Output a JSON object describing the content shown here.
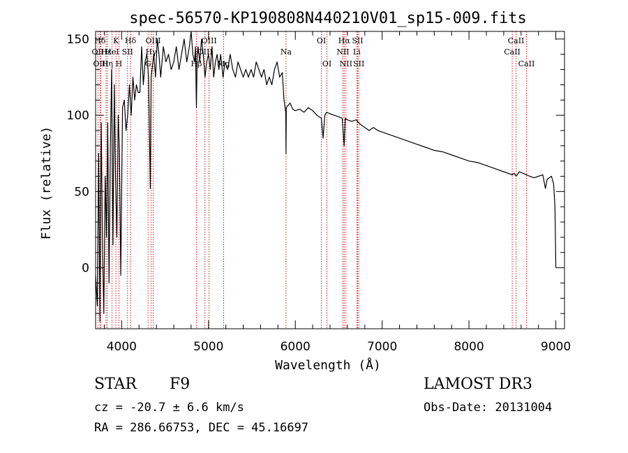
{
  "chart_data": {
    "type": "line",
    "title": "spec-56570-KP190808N440210V01_sp15-009.fits",
    "xlabel": "Wavelength (Å)",
    "ylabel": "Flux (relative)",
    "xlim": [
      3700,
      9100
    ],
    "ylim": [
      -40,
      155
    ],
    "xticks": [
      4000,
      5000,
      6000,
      7000,
      8000,
      9000
    ],
    "yticks": [
      0,
      50,
      100,
      150
    ],
    "xtick_labels": [
      "4000",
      "5000",
      "6000",
      "7000",
      "8000",
      "9000"
    ],
    "ytick_labels": [
      "0",
      "50",
      "100",
      "150"
    ],
    "line_color": "#000000",
    "marker_color": "#cc0000",
    "series": [
      {
        "name": "flux",
        "x": [
          3700,
          3720,
          3735,
          3750,
          3765,
          3780,
          3795,
          3810,
          3825,
          3840,
          3855,
          3870,
          3885,
          3900,
          3915,
          3930,
          3945,
          3960,
          3975,
          3990,
          4010,
          4030,
          4050,
          4070,
          4090,
          4110,
          4130,
          4150,
          4170,
          4190,
          4210,
          4230,
          4250,
          4270,
          4290,
          4310,
          4330,
          4340,
          4350,
          4370,
          4390,
          4410,
          4430,
          4450,
          4480,
          4510,
          4540,
          4570,
          4600,
          4630,
          4660,
          4690,
          4720,
          4750,
          4780,
          4800,
          4820,
          4840,
          4850,
          4861,
          4870,
          4880,
          4900,
          4920,
          4940,
          4960,
          4980,
          5000,
          5020,
          5040,
          5060,
          5080,
          5100,
          5120,
          5140,
          5167,
          5190,
          5220,
          5250,
          5280,
          5310,
          5340,
          5370,
          5400,
          5430,
          5460,
          5490,
          5520,
          5550,
          5580,
          5610,
          5640,
          5670,
          5700,
          5730,
          5760,
          5790,
          5820,
          5850,
          5870,
          5890,
          5893,
          5896,
          5910,
          5940,
          5970,
          6000,
          6050,
          6100,
          6150,
          6200,
          6250,
          6300,
          6320,
          6340,
          6360,
          6400,
          6450,
          6500,
          6540,
          6562,
          6575,
          6600,
          6650,
          6700,
          6750,
          6800,
          6850,
          6900,
          6950,
          7000,
          7100,
          7200,
          7300,
          7400,
          7500,
          7600,
          7700,
          7800,
          7900,
          8000,
          8100,
          8200,
          8300,
          8400,
          8498,
          8520,
          8542,
          8580,
          8620,
          8662,
          8700,
          8750,
          8800,
          8850,
          8880,
          8900,
          8950,
          8975,
          8990,
          9000
        ],
        "y": [
          -5,
          -25,
          75,
          -35,
          95,
          10,
          -30,
          60,
          20,
          95,
          -10,
          80,
          130,
          15,
          120,
          60,
          20,
          100,
          75,
          -5,
          105,
          110,
          90,
          100,
          120,
          100,
          125,
          110,
          120,
          115,
          115,
          145,
          120,
          135,
          140,
          125,
          52,
          125,
          130,
          140,
          125,
          150,
          140,
          125,
          145,
          135,
          140,
          130,
          135,
          145,
          130,
          140,
          150,
          135,
          145,
          155,
          140,
          135,
          145,
          105,
          140,
          145,
          135,
          150,
          140,
          125,
          135,
          140,
          130,
          145,
          125,
          135,
          140,
          130,
          140,
          125,
          135,
          130,
          140,
          130,
          125,
          135,
          130,
          125,
          130,
          125,
          130,
          125,
          135,
          130,
          125,
          130,
          120,
          125,
          120,
          130,
          135,
          125,
          128,
          110,
          102,
          75,
          105,
          106,
          108,
          104,
          103,
          104,
          102,
          105,
          103,
          100,
          98,
          85,
          100,
          102,
          101,
          100,
          99,
          98,
          80,
          98,
          97,
          96,
          97,
          94,
          92,
          90,
          92,
          90,
          89,
          87,
          85,
          83,
          81,
          79,
          77,
          76,
          74,
          72,
          70,
          69,
          67,
          65,
          63,
          61,
          62,
          60,
          63,
          62,
          61,
          60,
          59,
          60,
          61,
          52,
          58,
          60,
          55,
          40,
          0
        ]
      }
    ],
    "lines": [
      {
        "label": "Hδ",
        "wl": 3750,
        "row": 1
      },
      {
        "label": "OII",
        "wl": 3727,
        "row": 2
      },
      {
        "label": "OIII",
        "wl": 3760,
        "row": 3
      },
      {
        "label": "Hε",
        "wl": 3820,
        "row": 2
      },
      {
        "label": "Hη",
        "wl": 3835,
        "row": 3
      },
      {
        "label": "HeI",
        "wl": 3889,
        "row": 2
      },
      {
        "label": "K",
        "wl": 3934,
        "row": 1
      },
      {
        "label": "H",
        "wl": 3969,
        "row": 3
      },
      {
        "label": "SII",
        "wl": 4068,
        "row": 2
      },
      {
        "label": "Hδ",
        "wl": 4102,
        "row": 1
      },
      {
        "label": "G",
        "wl": 4304,
        "row": 3
      },
      {
        "label": "Hγ",
        "wl": 4340,
        "row": 2
      },
      {
        "label": "OIII",
        "wl": 4363,
        "row": 1
      },
      {
        "label": "Hβ",
        "wl": 4861,
        "row": 3
      },
      {
        "label": "OIII",
        "wl": 4959,
        "row": 2
      },
      {
        "label": "OIII",
        "wl": 5007,
        "row": 1
      },
      {
        "label": "Mg",
        "wl": 5175,
        "row": 3
      },
      {
        "label": "Na",
        "wl": 5893,
        "row": 2
      },
      {
        "label": "OI",
        "wl": 6300,
        "row": 1
      },
      {
        "label": "OI",
        "wl": 6364,
        "row": 3
      },
      {
        "label": "NII",
        "wl": 6548,
        "row": 2
      },
      {
        "label": "Hα",
        "wl": 6563,
        "row": 1
      },
      {
        "label": "NII",
        "wl": 6583,
        "row": 3
      },
      {
        "label": "Li",
        "wl": 6708,
        "row": 2
      },
      {
        "label": "SII",
        "wl": 6717,
        "row": 1
      },
      {
        "label": "SII",
        "wl": 6731,
        "row": 3
      },
      {
        "label": "CaII",
        "wl": 8498,
        "row": 2
      },
      {
        "label": "CaII",
        "wl": 8542,
        "row": 1
      },
      {
        "label": "CaII",
        "wl": 8662,
        "row": 3
      }
    ]
  },
  "info": {
    "class": "STAR",
    "subclass": "F9",
    "survey": "LAMOST DR3",
    "redshift": "cz = -20.7 ± 6.6 km/s",
    "obs_date": "Obs-Date: 20131004",
    "coords": "RA = 286.66753, DEC =  45.16697"
  }
}
